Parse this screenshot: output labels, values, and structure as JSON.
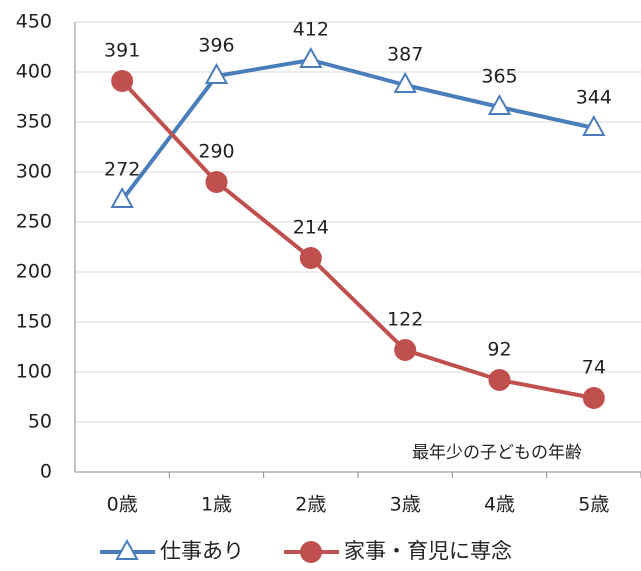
{
  "chart_data": {
    "type": "line",
    "categories": [
      "0歳",
      "1歳",
      "2歳",
      "3歳",
      "4歳",
      "5歳"
    ],
    "series": [
      {
        "name": "仕事あり",
        "color": "#4a7ebb",
        "marker": "triangle",
        "values": [
          272,
          396,
          412,
          387,
          365,
          344
        ]
      },
      {
        "name": "家事・育児に専念",
        "color": "#c0504d",
        "marker": "circle",
        "values": [
          391,
          290,
          214,
          122,
          92,
          74
        ]
      }
    ],
    "annotation": "最年少の子どもの年齢",
    "ylim": [
      0,
      450
    ],
    "yticks": [
      0,
      50,
      100,
      150,
      200,
      250,
      300,
      350,
      400,
      450
    ],
    "grid": true,
    "legend": "bottom"
  }
}
